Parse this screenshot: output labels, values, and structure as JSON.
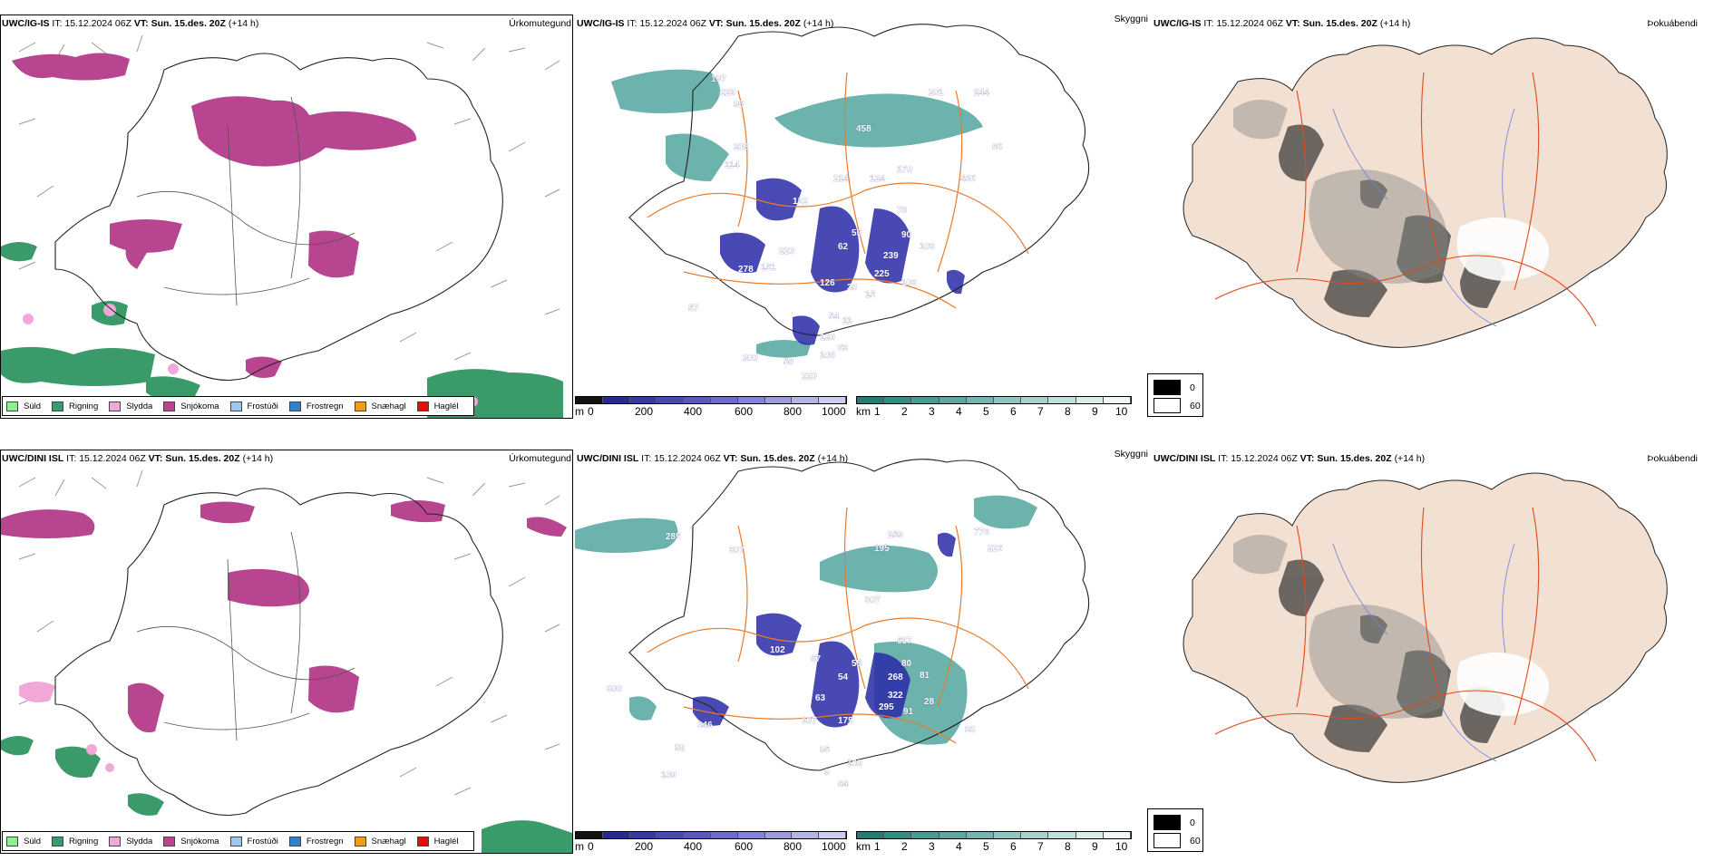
{
  "panels": [
    {
      "model": "UWC/IG-IS",
      "it_label": "IT:",
      "it_value": "15.12.2024 06Z",
      "vt_label": "VT:",
      "vt_value": "Sun. 15.des. 20Z",
      "lead": "(+14 h)",
      "titles": {
        "precip_type": "Úrkomutegund",
        "visibility": "Skyggni",
        "fog": "Þokuábendi"
      },
      "cloud_labels": [
        "197",
        "229",
        "96",
        "202",
        "114",
        "458",
        "214",
        "124",
        "170",
        "201",
        "244",
        "86",
        "486",
        "132",
        "55",
        "78",
        "90",
        "62",
        "103",
        "239",
        "220",
        "151",
        "278",
        "126",
        "225",
        "103",
        "38",
        "15",
        "54",
        "11",
        "120",
        "63",
        "108",
        "200",
        "58",
        "220",
        "57"
      ]
    },
    {
      "model": "UWC/DINI ISL",
      "it_label": "IT:",
      "it_value": "15.12.2024 06Z",
      "vt_label": "VT:",
      "vt_value": "Sun. 15.des. 20Z",
      "lead": "(+14 h)",
      "titles": {
        "precip_type": "Úrkomutegund",
        "visibility": "Skyggni",
        "fog": "Þokuábendi"
      },
      "cloud_labels": [
        "285",
        "307",
        "259",
        "195",
        "778",
        "226",
        "307",
        "102",
        "87",
        "55",
        "54",
        "537",
        "80",
        "81",
        "268",
        "322",
        "295",
        "91",
        "28",
        "300",
        "63",
        "107",
        "175",
        "92",
        "846",
        "109",
        "95",
        "9",
        "100",
        "84",
        "33"
      ]
    }
  ],
  "precip_legend": [
    {
      "label": "Súld",
      "color": "#90ee90"
    },
    {
      "label": "Rigning",
      "color": "#3a9a6a"
    },
    {
      "label": "Slydda",
      "color": "#f0a8d8"
    },
    {
      "label": "Snjókoma",
      "color": "#b8458f"
    },
    {
      "label": "Frostúði",
      "color": "#9ec7ee"
    },
    {
      "label": "Frostregn",
      "color": "#3a7fc4"
    },
    {
      "label": "Snæhagl",
      "color": "#f29a1e"
    },
    {
      "label": "Haglél",
      "color": "#e01010"
    }
  ],
  "cloud_base_scale": {
    "unit": "m",
    "ticks": [
      "0",
      "200",
      "400",
      "600",
      "800",
      "1000"
    ]
  },
  "visibility_scale": {
    "unit": "km",
    "ticks": [
      "1",
      "2",
      "3",
      "4",
      "5",
      "6",
      "7",
      "8",
      "9",
      "10"
    ]
  },
  "fog_legend": [
    {
      "label": "0",
      "color": "#000000"
    },
    {
      "label": "60",
      "color": "#ffffff"
    }
  ],
  "colors": {
    "snow": "#b8458f",
    "rain": "#3a9a6a",
    "sleet": "#f0a8d8",
    "cloud_blue": "#2a2aa8",
    "vis_teal": "#3a9a90",
    "roads": "#e87a2a",
    "land_fog": "#f2e0d2",
    "rivers": "#6a7ee0"
  }
}
